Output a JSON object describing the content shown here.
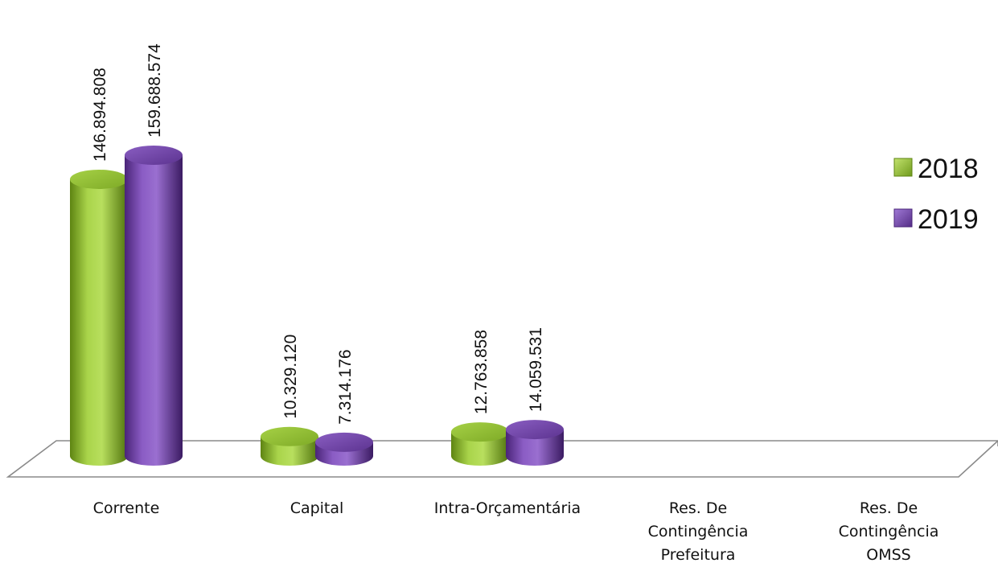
{
  "chart_data": {
    "type": "bar",
    "categories": [
      [
        "Corrente"
      ],
      [
        "Capital"
      ],
      [
        "Intra-Orçamentária"
      ],
      [
        "Res. De",
        "Contingência",
        "Prefeitura"
      ],
      [
        "Res. De",
        "Contingência",
        "OMSS"
      ]
    ],
    "series": [
      {
        "name": "2018",
        "values": [
          146894808,
          10329120,
          12763858,
          0,
          0
        ],
        "labels": [
          "146.894.808",
          "10.329.120",
          "12.763.858",
          "",
          ""
        ],
        "color": "#8dbd2d"
      },
      {
        "name": "2019",
        "values": [
          159688574,
          7314176,
          14059531,
          0,
          0
        ],
        "labels": [
          "159.688.574",
          "7.314.176",
          "14.059.531",
          "",
          ""
        ],
        "color": "#6d3fa0"
      }
    ],
    "legend_position": "right",
    "bar_shape": "cylinder",
    "style": "3d"
  }
}
